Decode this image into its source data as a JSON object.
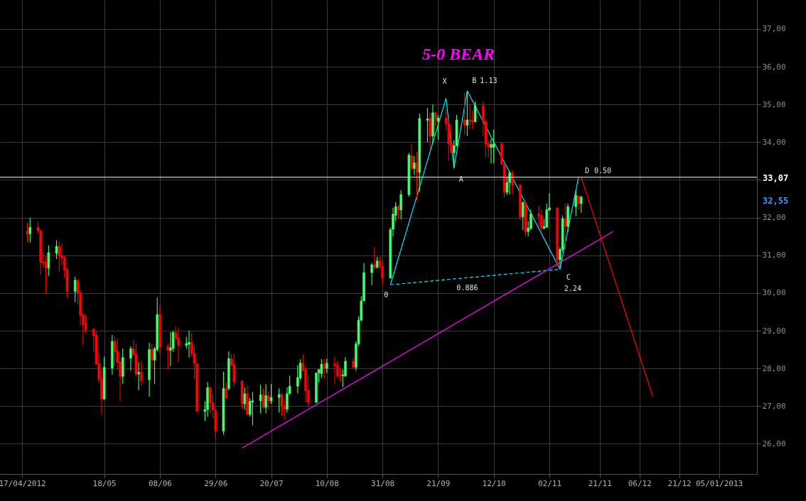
{
  "chart_data": {
    "type": "candlestick",
    "title": "5-0 BEAR",
    "xlim": [
      "2012-04-10",
      "2013-01-18"
    ],
    "xticks": [
      {
        "value": "2012-04-17",
        "label": "17/04/2012"
      },
      {
        "value": "2012-05-18",
        "label": "18/05"
      },
      {
        "value": "2012-06-08",
        "label": "08/06"
      },
      {
        "value": "2012-06-29",
        "label": "29/06"
      },
      {
        "value": "2012-07-20",
        "label": "20/07"
      },
      {
        "value": "2012-08-10",
        "label": "10/08"
      },
      {
        "value": "2012-08-31",
        "label": "31/08"
      },
      {
        "value": "2012-09-21",
        "label": "21/09"
      },
      {
        "value": "2012-10-12",
        "label": "12/10"
      },
      {
        "value": "2012-11-02",
        "label": "02/11"
      },
      {
        "value": "2012-11-21",
        "label": "21/11"
      },
      {
        "value": "2012-12-06",
        "label": "06/12"
      },
      {
        "value": "2012-12-21",
        "label": "21/12"
      },
      {
        "value": "2013-01-05",
        "label": "05/01/2013"
      }
    ],
    "ylim": [
      25.2,
      37.77
    ],
    "yticks": [
      {
        "value": 26,
        "label": "26,00"
      },
      {
        "value": 27,
        "label": "27,00"
      },
      {
        "value": 28,
        "label": "28,00"
      },
      {
        "value": 29,
        "label": "29,00"
      },
      {
        "value": 30,
        "label": "30,00"
      },
      {
        "value": 31,
        "label": "31,00"
      },
      {
        "value": 32,
        "label": "32,00"
      },
      {
        "value": 33,
        "label": null
      },
      {
        "value": 34,
        "label": "34,00"
      },
      {
        "value": 35,
        "label": "35,00"
      },
      {
        "value": 36,
        "label": "36,00"
      },
      {
        "value": 37,
        "label": "37,00"
      }
    ],
    "grid": true,
    "series": [
      {
        "type": "line",
        "color": "#00e5ff",
        "x": [
          "2012-09-03",
          "2012-09-24",
          "2012-09-27",
          "2012-10-02",
          "2012-11-06",
          "2012-11-13"
        ],
        "values": [
          30.22,
          35.16,
          33.31,
          35.36,
          30.63,
          33.07
        ]
      },
      {
        "type": "line",
        "color": "#00e5ff",
        "line_style": "dashed",
        "x": [
          "2012-09-03",
          "2012-11-06"
        ],
        "values": [
          30.22,
          30.63
        ]
      },
      {
        "type": "line",
        "color": "#ff00ff",
        "x": [
          "2012-07-09",
          "2012-11-26"
        ],
        "values": [
          25.89,
          31.63
        ]
      },
      {
        "type": "line",
        "color": "#ff0000",
        "x": [
          "2012-11-14",
          "2012-12-11"
        ],
        "values": [
          33.07,
          27.26
        ]
      },
      {
        "color": "#40ff70",
        "x": [
          "2012-04-20",
          "2012-04-27",
          "2012-04-30",
          "2012-05-07",
          "2012-05-18",
          "2012-05-21",
          "2012-05-25",
          "2012-05-28",
          "2012-05-31",
          "2012-06-04",
          "2012-06-06",
          "2012-06-07",
          "2012-06-12",
          "2012-06-13",
          "2012-06-18",
          "2012-06-19",
          "2012-06-25",
          "2012-06-26",
          "2012-07-02",
          "2012-07-04",
          "2012-07-10",
          "2012-07-12",
          "2012-07-13",
          "2012-07-16",
          "2012-07-18",
          "2012-07-20",
          "2012-07-23",
          "2012-07-26",
          "2012-07-27",
          "2012-07-30",
          "2012-07-31",
          "2012-08-06",
          "2012-08-07",
          "2012-08-08",
          "2012-08-10",
          "2012-08-16",
          "2012-08-17",
          "2012-08-21",
          "2012-08-22",
          "2012-08-23",
          "2012-08-24",
          "2012-08-27",
          "2012-08-29",
          "2012-09-03",
          "2012-09-04",
          "2012-09-05",
          "2012-09-07",
          "2012-09-10",
          "2012-09-12",
          "2012-09-14",
          "2012-09-17",
          "2012-09-19",
          "2012-09-21",
          "2012-09-27",
          "2012-09-28",
          "2012-10-02",
          "2012-10-05",
          "2012-10-11",
          "2012-10-12",
          "2012-10-17",
          "2012-10-18",
          "2012-10-23",
          "2012-10-25",
          "2012-10-26",
          "2012-10-31",
          "2012-11-01",
          "2012-11-02",
          "2012-11-06",
          "2012-11-07",
          "2012-11-09",
          "2012-11-12",
          "2012-11-14"
        ],
        "ohlc": [
          [
            31.57,
            32.0,
            31.34,
            31.74
          ],
          [
            30.66,
            31.27,
            30.46,
            31.07
          ],
          [
            31.05,
            31.4,
            30.9,
            31.24
          ],
          [
            30.04,
            30.43,
            29.76,
            30.34
          ],
          [
            27.19,
            28.31,
            27.17,
            28.03
          ],
          [
            28.01,
            28.89,
            27.83,
            28.72
          ],
          [
            27.79,
            28.53,
            27.59,
            28.29
          ],
          [
            28.27,
            28.59,
            27.94,
            28.52
          ],
          [
            27.85,
            28.16,
            27.42,
            27.9
          ],
          [
            27.7,
            28.68,
            27.25,
            28.5
          ],
          [
            28.22,
            28.57,
            27.59,
            28.52
          ],
          [
            28.5,
            29.88,
            28.45,
            29.43
          ],
          [
            28.48,
            28.97,
            28.06,
            28.55
          ],
          [
            28.53,
            29.0,
            28.44,
            28.95
          ],
          [
            28.61,
            28.84,
            28.53,
            28.66
          ],
          [
            28.64,
            29.0,
            28.29,
            28.69
          ],
          [
            26.86,
            27.13,
            26.61,
            26.91
          ],
          [
            26.91,
            27.64,
            26.72,
            27.49
          ],
          [
            26.34,
            27.91,
            26.25,
            27.47
          ],
          [
            27.47,
            28.45,
            27.41,
            28.26
          ],
          [
            27.06,
            27.5,
            26.91,
            27.33
          ],
          [
            26.78,
            27.22,
            26.72,
            27.13
          ],
          [
            27.11,
            27.38,
            26.49,
            27.14
          ],
          [
            27.14,
            27.56,
            26.81,
            27.3
          ],
          [
            26.97,
            27.59,
            26.81,
            27.28
          ],
          [
            27.14,
            27.59,
            27.06,
            27.23
          ],
          [
            27.23,
            27.47,
            26.83,
            27.31
          ],
          [
            26.92,
            27.5,
            26.83,
            27.33
          ],
          [
            27.33,
            27.81,
            27.31,
            27.53
          ],
          [
            27.53,
            28.09,
            27.34,
            27.76
          ],
          [
            27.75,
            28.24,
            27.7,
            28.14
          ],
          [
            27.1,
            27.88,
            27.07,
            27.88
          ],
          [
            27.88,
            27.97,
            27.63,
            27.97
          ],
          [
            27.86,
            28.25,
            27.75,
            28.11
          ],
          [
            28.0,
            28.26,
            27.88,
            28.14
          ],
          [
            27.8,
            27.97,
            27.5,
            27.83
          ],
          [
            27.8,
            28.3,
            27.78,
            28.19
          ],
          [
            28.03,
            28.72,
            27.94,
            28.65
          ],
          [
            28.65,
            29.38,
            28.6,
            29.28
          ],
          [
            29.28,
            29.92,
            29.25,
            29.79
          ],
          [
            29.79,
            30.8,
            29.78,
            30.54
          ],
          [
            30.54,
            30.8,
            30.21,
            30.75
          ],
          [
            30.68,
            30.96,
            30.65,
            30.85
          ],
          [
            30.4,
            31.74,
            30.38,
            31.68
          ],
          [
            31.69,
            32.26,
            31.5,
            32.09
          ],
          [
            32.06,
            32.41,
            31.91,
            32.29
          ],
          [
            32.2,
            32.72,
            31.95,
            32.61
          ],
          [
            32.61,
            33.72,
            32.55,
            33.66
          ],
          [
            33.3,
            33.63,
            33.13,
            33.45
          ],
          [
            33.2,
            34.76,
            32.69,
            34.63
          ],
          [
            34.58,
            34.91,
            34.0,
            34.62
          ],
          [
            34.16,
            35.0,
            33.97,
            34.78
          ],
          [
            34.56,
            34.72,
            34.06,
            34.64
          ],
          [
            33.72,
            34.06,
            33.31,
            33.91
          ],
          [
            33.91,
            34.72,
            33.88,
            34.59
          ],
          [
            34.45,
            35.36,
            34.16,
            34.59
          ],
          [
            34.54,
            35.08,
            34.53,
            34.97
          ],
          [
            33.86,
            34.09,
            33.44,
            33.94
          ],
          [
            33.86,
            34.33,
            33.44,
            33.95
          ],
          [
            32.67,
            33.09,
            32.59,
            32.93
          ],
          [
            32.93,
            33.25,
            32.61,
            33.19
          ],
          [
            32.02,
            32.43,
            31.67,
            32.4
          ],
          [
            31.63,
            31.9,
            31.5,
            31.72
          ],
          [
            31.71,
            32.21,
            31.67,
            32.1
          ],
          [
            31.72,
            31.96,
            31.68,
            31.76
          ],
          [
            31.74,
            32.38,
            31.74,
            32.21
          ],
          [
            32.2,
            32.64,
            32.18,
            32.26
          ],
          [
            30.88,
            31.21,
            30.68,
            31.16
          ],
          [
            31.16,
            32.06,
            31.08,
            31.97
          ],
          [
            31.77,
            32.38,
            31.62,
            32.29
          ],
          [
            32.29,
            32.71,
            32.04,
            32.59
          ],
          [
            32.37,
            32.57,
            32.13,
            32.55
          ]
        ]
      },
      {
        "color": "#ff0000",
        "x": [
          "2012-04-19",
          "2012-04-23",
          "2012-04-24",
          "2012-04-25",
          "2012-04-26",
          "2012-05-01",
          "2012-05-02",
          "2012-05-03",
          "2012-05-04",
          "2012-05-08",
          "2012-05-09",
          "2012-05-10",
          "2012-05-11",
          "2012-05-14",
          "2012-05-15",
          "2012-05-16",
          "2012-05-17",
          "2012-05-22",
          "2012-05-23",
          "2012-05-24",
          "2012-05-29",
          "2012-05-30",
          "2012-06-01",
          "2012-06-05",
          "2012-06-08",
          "2012-06-11",
          "2012-06-14",
          "2012-06-15",
          "2012-06-20",
          "2012-06-21",
          "2012-06-22",
          "2012-06-27",
          "2012-06-28",
          "2012-06-29",
          "2012-07-03",
          "2012-07-05",
          "2012-07-06",
          "2012-07-09",
          "2012-07-11",
          "2012-07-17",
          "2012-07-19",
          "2012-07-24",
          "2012-07-25",
          "2012-08-01",
          "2012-08-02",
          "2012-08-03",
          "2012-08-09",
          "2012-08-13",
          "2012-08-14",
          "2012-08-15",
          "2012-08-20",
          "2012-08-28",
          "2012-08-30",
          "2012-08-31",
          "2012-09-06",
          "2012-09-11",
          "2012-09-13",
          "2012-09-18",
          "2012-09-20",
          "2012-09-24",
          "2012-09-25",
          "2012-09-26",
          "2012-10-01",
          "2012-10-03",
          "2012-10-04",
          "2012-10-08",
          "2012-10-09",
          "2012-10-10",
          "2012-10-15",
          "2012-10-16",
          "2012-10-19",
          "2012-10-22",
          "2012-10-24",
          "2012-10-29",
          "2012-10-30",
          "2012-11-05",
          "2012-11-08",
          "2012-11-13"
        ],
        "ohlc": [
          [
            31.65,
            31.88,
            31.34,
            31.57
          ],
          [
            31.74,
            31.89,
            31.57,
            31.65
          ],
          [
            31.66,
            31.66,
            30.48,
            30.81
          ],
          [
            30.83,
            31.1,
            30.66,
            30.79
          ],
          [
            30.81,
            30.98,
            29.98,
            30.66
          ],
          [
            31.24,
            31.37,
            30.57,
            30.98
          ],
          [
            31.0,
            31.31,
            30.75,
            30.92
          ],
          [
            30.94,
            31.0,
            30.39,
            30.6
          ],
          [
            30.62,
            30.66,
            29.88,
            30.04
          ],
          [
            30.34,
            30.36,
            29.7,
            30.0
          ],
          [
            30.02,
            30.08,
            29.14,
            29.41
          ],
          [
            29.43,
            29.47,
            28.63,
            29.17
          ],
          [
            29.19,
            29.43,
            28.94,
            29.02
          ],
          [
            29.04,
            29.08,
            28.45,
            28.87
          ],
          [
            28.89,
            28.99,
            28.1,
            28.12
          ],
          [
            28.14,
            28.42,
            27.61,
            27.7
          ],
          [
            27.71,
            27.98,
            26.77,
            27.19
          ],
          [
            28.72,
            28.85,
            28.07,
            28.44
          ],
          [
            28.46,
            28.8,
            27.96,
            28.16
          ],
          [
            28.18,
            28.18,
            27.14,
            27.79
          ],
          [
            28.52,
            28.76,
            28.33,
            28.37
          ],
          [
            28.39,
            28.67,
            27.78,
            27.85
          ],
          [
            27.9,
            28.2,
            27.55,
            27.68
          ],
          [
            28.5,
            28.65,
            28.02,
            28.22
          ],
          [
            29.43,
            29.69,
            28.4,
            28.57
          ],
          [
            28.59,
            28.67,
            27.96,
            28.48
          ],
          [
            28.95,
            29.11,
            28.69,
            28.79
          ],
          [
            28.81,
            29.08,
            28.17,
            28.61
          ],
          [
            28.69,
            28.94,
            28.31,
            28.39
          ],
          [
            28.41,
            28.61,
            27.72,
            28.13
          ],
          [
            28.13,
            28.13,
            26.86,
            26.86
          ],
          [
            27.49,
            27.53,
            26.81,
            27.09
          ],
          [
            27.09,
            27.31,
            26.68,
            26.91
          ],
          [
            26.91,
            26.91,
            26.14,
            26.34
          ],
          [
            27.47,
            27.63,
            27.19,
            27.21
          ],
          [
            28.26,
            28.38,
            28.06,
            28.09
          ],
          [
            28.11,
            28.39,
            27.52,
            27.64
          ],
          [
            27.67,
            27.67,
            26.94,
            27.06
          ],
          [
            27.33,
            27.56,
            26.76,
            26.78
          ],
          [
            27.3,
            27.47,
            26.94,
            26.97
          ],
          [
            27.28,
            27.38,
            26.91,
            27.14
          ],
          [
            27.31,
            27.34,
            26.75,
            27.0
          ],
          [
            27.01,
            27.18,
            26.64,
            26.92
          ],
          [
            28.14,
            28.38,
            27.91,
            27.95
          ],
          [
            27.97,
            28.06,
            27.1,
            27.41
          ],
          [
            27.43,
            27.81,
            26.97,
            27.1
          ],
          [
            28.11,
            28.25,
            27.72,
            28.0
          ],
          [
            28.12,
            28.31,
            27.6,
            28.07
          ],
          [
            28.09,
            28.19,
            27.75,
            27.8
          ],
          [
            27.83,
            28.01,
            27.66,
            27.8
          ],
          [
            28.19,
            28.28,
            28.0,
            28.03
          ],
          [
            30.75,
            31.23,
            30.62,
            30.68
          ],
          [
            30.85,
            30.96,
            30.65,
            30.7
          ],
          [
            30.71,
            30.87,
            30.22,
            30.4
          ],
          [
            32.29,
            32.34,
            31.97,
            32.2
          ],
          [
            33.64,
            33.94,
            33.25,
            33.3
          ],
          [
            33.45,
            33.75,
            32.45,
            33.2
          ],
          [
            34.63,
            34.78,
            33.78,
            34.16
          ],
          [
            34.78,
            34.81,
            34.44,
            34.63
          ],
          [
            34.64,
            34.88,
            34.31,
            34.49
          ],
          [
            34.5,
            34.75,
            33.51,
            33.95
          ],
          [
            33.97,
            34.44,
            33.69,
            33.72
          ],
          [
            34.59,
            35.31,
            34.19,
            34.45
          ],
          [
            34.59,
            35.03,
            34.34,
            34.56
          ],
          [
            34.58,
            34.84,
            34.34,
            34.53
          ],
          [
            34.97,
            35.09,
            34.16,
            34.56
          ],
          [
            34.56,
            34.56,
            33.59,
            33.95
          ],
          [
            33.97,
            34.06,
            33.59,
            33.86
          ],
          [
            33.97,
            33.97,
            33.4,
            33.42
          ],
          [
            33.42,
            33.42,
            32.53,
            32.67
          ],
          [
            33.19,
            33.26,
            32.62,
            32.86
          ],
          [
            32.87,
            32.87,
            31.93,
            32.02
          ],
          [
            32.4,
            32.43,
            31.5,
            31.63
          ],
          [
            32.1,
            32.31,
            31.74,
            32.04
          ],
          [
            32.06,
            32.21,
            31.63,
            31.72
          ],
          [
            32.26,
            32.26,
            30.74,
            30.88
          ],
          [
            31.97,
            32.38,
            31.15,
            31.77
          ],
          [
            32.57,
            32.59,
            32.21,
            32.37
          ]
        ]
      }
    ],
    "ref_lines": [
      {
        "axis": "y",
        "value": 33.07,
        "label": "33,07",
        "color": "#ffffff"
      }
    ],
    "annotations": [
      {
        "text": "X",
        "x": "2012-09-24",
        "y": 35.16
      },
      {
        "text": "B",
        "x": "2012-10-02",
        "y": 35.36
      },
      {
        "text": "1.13",
        "x": "2012-10-02",
        "y": 35.36
      },
      {
        "text": "A",
        "x": "2012-09-27",
        "y": 33.31
      },
      {
        "text": "C",
        "x": "2012-11-06",
        "y": 30.63
      },
      {
        "text": "2.24",
        "x": "2012-11-06",
        "y": 30.63
      },
      {
        "text": "D",
        "x": "2012-11-13",
        "y": 33.07
      },
      {
        "text": "0.50",
        "x": "2012-11-13",
        "y": 33.07
      },
      {
        "text": "0",
        "x": "2012-09-03",
        "y": 30.22
      },
      {
        "text": "0.886",
        "x": "2012-10-02",
        "y": 30.4
      },
      "32,55"
    ]
  }
}
